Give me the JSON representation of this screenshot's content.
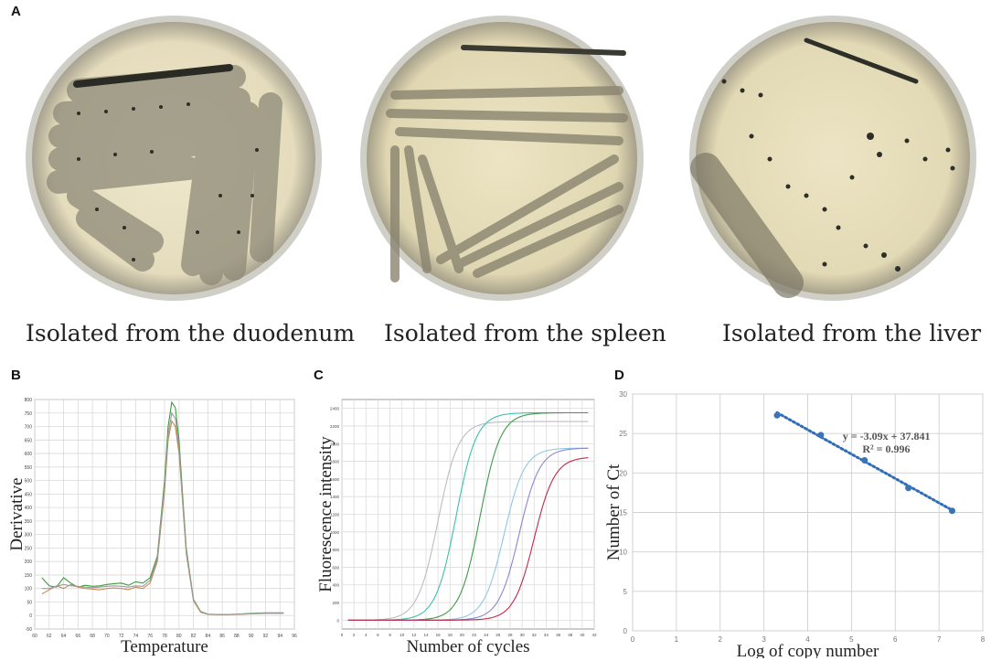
{
  "figure": {
    "panel_a": {
      "letter": "A",
      "plates": [
        {
          "caption": "Isolated from the duodenum"
        },
        {
          "caption": "Isolated from the spleen"
        },
        {
          "caption": "Isolated from the liver"
        }
      ]
    },
    "panel_b": {
      "letter": "B",
      "xlabel": "Temperature",
      "ylabel": "Derivative"
    },
    "panel_c": {
      "letter": "C",
      "xlabel": "Number of cycles",
      "ylabel": "Fluorescence intensity"
    },
    "panel_d": {
      "letter": "D",
      "xlabel": "Log of copy number",
      "ylabel": "Number of Ct",
      "equation": "y = -3.09x + 37.841",
      "r2": "R² = 0.996"
    }
  },
  "chart_data": [
    {
      "panel": "B",
      "type": "line",
      "xlabel": "Temperature",
      "ylabel": "Derivative",
      "xlim": [
        60,
        96
      ],
      "ylim": [
        -50,
        800
      ],
      "x_ticks": [
        "60",
        "62",
        "64",
        "66",
        "68",
        "70",
        "72",
        "74",
        "76",
        "78",
        "80",
        "82",
        "84",
        "86",
        "88",
        "90",
        "92",
        "94",
        "96"
      ],
      "y_ticks": [
        "-50",
        "0",
        "50",
        "100",
        "150",
        "200",
        "250",
        "300",
        "350",
        "400",
        "450",
        "500",
        "550",
        "600",
        "650",
        "700",
        "750",
        "800"
      ],
      "series": [
        {
          "color": "#3c9a3c",
          "x": [
            61,
            62,
            63,
            64,
            65,
            66,
            67,
            68,
            69,
            70,
            71,
            72,
            73,
            74,
            75,
            76,
            77,
            78,
            78.5,
            79,
            79.5,
            80,
            80.5,
            81,
            82,
            83,
            84,
            86,
            88,
            90,
            92,
            94.5
          ],
          "y": [
            140,
            110,
            105,
            140,
            120,
            105,
            112,
            108,
            110,
            115,
            118,
            120,
            112,
            125,
            120,
            140,
            220,
            500,
            700,
            790,
            770,
            650,
            450,
            250,
            60,
            15,
            5,
            3,
            5,
            8,
            10,
            10
          ]
        },
        {
          "color": "#c98a5a",
          "x": [
            61,
            62,
            63,
            64,
            65,
            66,
            67,
            68,
            69,
            70,
            71,
            72,
            73,
            74,
            75,
            76,
            77,
            78,
            78.5,
            79,
            79.5,
            80,
            80.5,
            81,
            82,
            83,
            84,
            86,
            88,
            90,
            92,
            94.5
          ],
          "y": [
            80,
            95,
            110,
            100,
            115,
            105,
            100,
            98,
            95,
            100,
            102,
            100,
            96,
            105,
            100,
            120,
            200,
            460,
            650,
            720,
            700,
            600,
            420,
            230,
            55,
            12,
            4,
            3,
            4,
            6,
            8,
            8
          ]
        },
        {
          "color": "#9a9a9a",
          "x": [
            61,
            62,
            63,
            64,
            65,
            66,
            67,
            68,
            69,
            70,
            71,
            72,
            73,
            74,
            75,
            76,
            77,
            78,
            78.5,
            79,
            79.5,
            80,
            80.5,
            81,
            82,
            83,
            84,
            86,
            88,
            90,
            92,
            94.5
          ],
          "y": [
            100,
            100,
            108,
            115,
            110,
            108,
            105,
            103,
            105,
            108,
            110,
            108,
            105,
            110,
            108,
            130,
            210,
            480,
            670,
            750,
            730,
            620,
            430,
            240,
            58,
            14,
            5,
            3,
            5,
            7,
            9,
            9
          ]
        }
      ]
    },
    {
      "panel": "C",
      "type": "line",
      "xlabel": "Number of cycles",
      "ylabel": "Fluorescence intensity",
      "xlim": [
        0,
        42
      ],
      "ylim": [
        -100,
        2500
      ],
      "x_ticks": [
        "0",
        "2",
        "4",
        "6",
        "8",
        "10",
        "12",
        "14",
        "16",
        "18",
        "20",
        "22",
        "24",
        "26",
        "28",
        "30",
        "32",
        "34",
        "36",
        "38",
        "40",
        "42"
      ],
      "y_ticks": [
        "0",
        "200",
        "400",
        "600",
        "800",
        "1000",
        "1200",
        "1400",
        "1600",
        "1800",
        "2000",
        "2200",
        "2400"
      ],
      "series": [
        {
          "color": "#bdbdbd",
          "midpoint": 16,
          "max": 2250
        },
        {
          "color": "#3fbfb0",
          "midpoint": 19,
          "max": 2350
        },
        {
          "color": "#3f9a4a",
          "midpoint": 23,
          "max": 2350
        },
        {
          "color": "#8fc8e8",
          "midpoint": 27,
          "max": 1950
        },
        {
          "color": "#8b86d0",
          "midpoint": 29.5,
          "max": 1950
        },
        {
          "color": "#c0294a",
          "midpoint": 32,
          "max": 1850
        }
      ]
    },
    {
      "panel": "D",
      "type": "scatter",
      "xlabel": "Log of copy number",
      "ylabel": "Number of Ct",
      "xlim": [
        0,
        8
      ],
      "ylim": [
        0,
        30
      ],
      "x_ticks": [
        "0",
        "1",
        "2",
        "3",
        "4",
        "5",
        "6",
        "7",
        "8"
      ],
      "y_ticks": [
        "0",
        "5",
        "10",
        "15",
        "20",
        "25",
        "30"
      ],
      "x": [
        3.3,
        4.3,
        5.3,
        6.3,
        7.3
      ],
      "y": [
        27.3,
        24.8,
        21.6,
        18.1,
        15.2
      ],
      "trendline": {
        "slope": -3.09,
        "intercept": 37.841,
        "color": "#2f6db5"
      },
      "annotations": [
        "y = -3.09x + 37.841",
        "R² = 0.996"
      ]
    }
  ]
}
